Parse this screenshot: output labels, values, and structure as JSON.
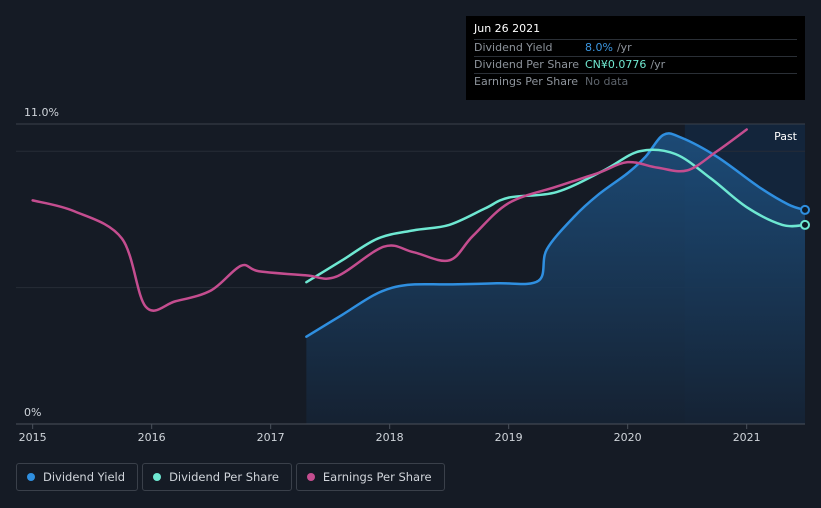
{
  "tooltip": {
    "date": "Jun 26 2021",
    "rows": [
      {
        "label": "Dividend Yield",
        "value": "8.0%",
        "unit": "/yr",
        "color": "#3b96e0"
      },
      {
        "label": "Dividend Per Share",
        "value": "CN¥0.0776",
        "unit": "/yr",
        "color": "#70e8d0"
      },
      {
        "label": "Earnings Per Share",
        "value": "No data",
        "unit": ""
      }
    ]
  },
  "legend": [
    {
      "label": "Dividend Yield",
      "color": "#2f8fe0"
    },
    {
      "label": "Dividend Per Share",
      "color": "#6ee8d2"
    },
    {
      "label": "Earnings Per Share",
      "color": "#c44d8f"
    }
  ],
  "chart_data": {
    "type": "line",
    "past_label": "Past",
    "y_ticks": [
      "11.0%",
      "0%"
    ],
    "ylim": [
      0,
      11
    ],
    "xlim": [
      2014.86,
      2021.49
    ],
    "past_region_start": 2020.48,
    "x_ticks": [
      "2015",
      "2016",
      "2017",
      "2018",
      "2019",
      "2020",
      "2021"
    ],
    "series": [
      {
        "name": "Dividend Yield",
        "color": "#2f8fe0",
        "area": true,
        "points": [
          [
            2017.3,
            3.2
          ],
          [
            2017.6,
            4.0
          ],
          [
            2017.9,
            4.8
          ],
          [
            2018.15,
            5.1
          ],
          [
            2018.5,
            5.12
          ],
          [
            2018.9,
            5.16
          ],
          [
            2019.25,
            5.25
          ],
          [
            2019.32,
            6.4
          ],
          [
            2019.55,
            7.6
          ],
          [
            2019.75,
            8.4
          ],
          [
            2020.0,
            9.2
          ],
          [
            2020.15,
            9.8
          ],
          [
            2020.3,
            10.6
          ],
          [
            2020.45,
            10.5
          ],
          [
            2020.75,
            9.8
          ],
          [
            2021.1,
            8.7
          ],
          [
            2021.35,
            8.05
          ],
          [
            2021.49,
            7.85
          ]
        ]
      },
      {
        "name": "Dividend Per Share",
        "color": "#6ee8d2",
        "area": false,
        "points": [
          [
            2017.3,
            5.2
          ],
          [
            2017.6,
            6.0
          ],
          [
            2017.9,
            6.8
          ],
          [
            2018.2,
            7.1
          ],
          [
            2018.5,
            7.3
          ],
          [
            2018.8,
            7.9
          ],
          [
            2019.0,
            8.3
          ],
          [
            2019.4,
            8.5
          ],
          [
            2019.8,
            9.3
          ],
          [
            2020.1,
            10.0
          ],
          [
            2020.4,
            9.9
          ],
          [
            2020.7,
            9.0
          ],
          [
            2021.0,
            7.95
          ],
          [
            2021.3,
            7.3
          ],
          [
            2021.49,
            7.3
          ]
        ]
      },
      {
        "name": "Earnings Per Share",
        "color": "#c44d8f",
        "area": false,
        "points": [
          [
            2015.0,
            8.2
          ],
          [
            2015.35,
            7.8
          ],
          [
            2015.75,
            6.8
          ],
          [
            2015.95,
            4.3
          ],
          [
            2016.2,
            4.5
          ],
          [
            2016.5,
            4.9
          ],
          [
            2016.75,
            5.8
          ],
          [
            2016.9,
            5.6
          ],
          [
            2017.3,
            5.45
          ],
          [
            2017.55,
            5.4
          ],
          [
            2017.95,
            6.5
          ],
          [
            2018.2,
            6.3
          ],
          [
            2018.5,
            6.0
          ],
          [
            2018.7,
            6.9
          ],
          [
            2019.0,
            8.1
          ],
          [
            2019.4,
            8.7
          ],
          [
            2019.75,
            9.2
          ],
          [
            2020.0,
            9.6
          ],
          [
            2020.25,
            9.4
          ],
          [
            2020.5,
            9.3
          ],
          [
            2020.75,
            10.0
          ],
          [
            2021.0,
            10.8
          ]
        ]
      }
    ],
    "grid": true
  }
}
